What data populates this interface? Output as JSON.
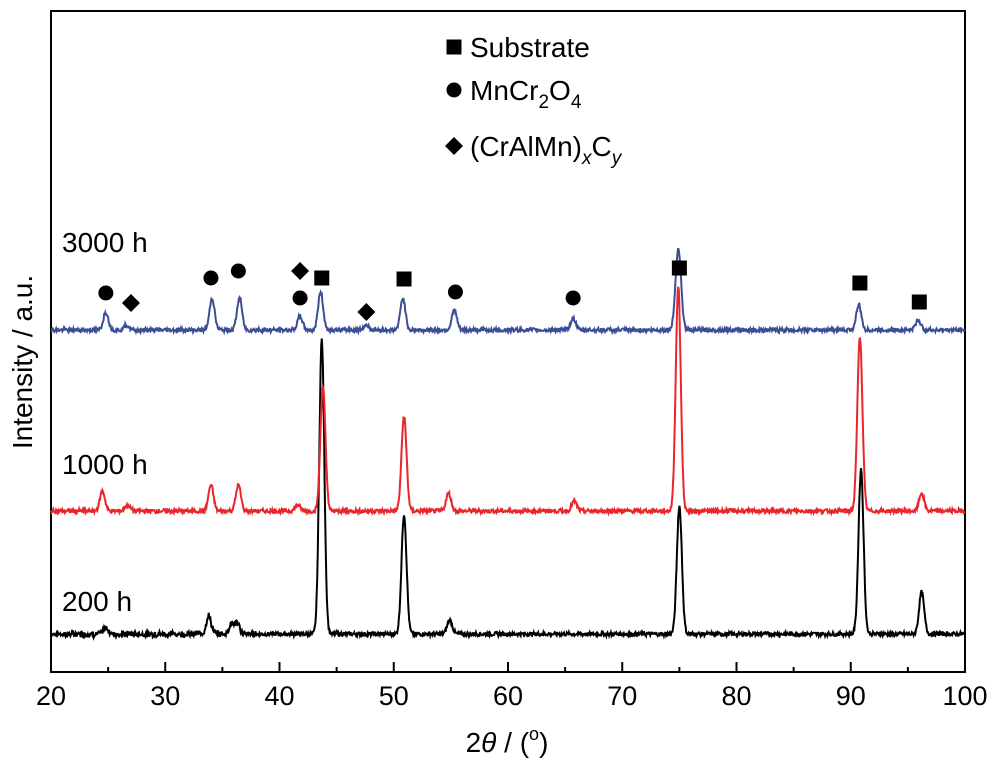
{
  "chart_data": {
    "type": "line",
    "xlabel_prefix": "2",
    "xlabel_symbol": "θ",
    "xlabel_suffix": " / (",
    "xlabel_unit": "o",
    "xlabel_close": ")",
    "ylabel": "Intensity / a.u.",
    "xlim": [
      20,
      100
    ],
    "xticks": [
      "20",
      "30",
      "40",
      "50",
      "60",
      "70",
      "80",
      "90",
      "100"
    ],
    "legend": {
      "position": "top-center",
      "entries": [
        {
          "marker": "square",
          "text": "Substrate"
        },
        {
          "marker": "circle",
          "text_parts": [
            [
              "MnCr",
              ""
            ],
            [
              "2",
              "sub"
            ],
            [
              "O",
              ""
            ],
            [
              "4",
              "sub"
            ]
          ]
        },
        {
          "marker": "diamond",
          "text_parts": [
            [
              "(CrAlMn)",
              ""
            ],
            [
              "x",
              "sub-italic"
            ],
            [
              "C",
              ""
            ],
            [
              "y",
              "sub-italic"
            ]
          ]
        }
      ]
    },
    "series": [
      {
        "name": "200 h",
        "color": "#000000",
        "baseline": 0,
        "peaks": [
          [
            24.8,
            6
          ],
          [
            33.8,
            18
          ],
          [
            35.8,
            10
          ],
          [
            36.3,
            10
          ],
          [
            43.7,
            295
          ],
          [
            50.9,
            120
          ],
          [
            54.9,
            14
          ],
          [
            75.0,
            128
          ],
          [
            90.9,
            165
          ],
          [
            96.2,
            42
          ]
        ]
      },
      {
        "name": "1000 h",
        "color": "#e8262b",
        "baseline": 0,
        "peaks": [
          [
            24.5,
            20
          ],
          [
            26.7,
            6
          ],
          [
            34.0,
            26
          ],
          [
            36.4,
            26
          ],
          [
            41.6,
            6
          ],
          [
            43.8,
            125
          ],
          [
            50.9,
            95
          ],
          [
            54.8,
            18
          ],
          [
            65.8,
            10
          ],
          [
            74.9,
            225
          ],
          [
            90.8,
            175
          ],
          [
            96.2,
            18
          ]
        ]
      },
      {
        "name": "3000 h",
        "color": "#3b4e96",
        "baseline": 0,
        "peaks": [
          [
            24.8,
            18
          ],
          [
            26.6,
            5
          ],
          [
            34.1,
            32
          ],
          [
            36.5,
            32
          ],
          [
            41.8,
            14
          ],
          [
            43.6,
            38
          ],
          [
            47.6,
            5
          ],
          [
            50.8,
            32
          ],
          [
            55.3,
            20
          ],
          [
            65.7,
            12
          ],
          [
            74.8,
            42
          ],
          [
            75.0,
            48
          ],
          [
            90.7,
            25
          ],
          [
            95.9,
            10
          ]
        ]
      }
    ],
    "phase_markers": [
      {
        "series": "3000 h",
        "x": 24.8,
        "marker": "circle"
      },
      {
        "series": "3000 h",
        "x": 27.0,
        "marker": "diamond"
      },
      {
        "series": "3000 h",
        "x": 34.0,
        "marker": "circle"
      },
      {
        "series": "3000 h",
        "x": 36.4,
        "marker": "circle"
      },
      {
        "series": "3000 h",
        "x": 41.8,
        "marker": "circle"
      },
      {
        "series": "3000 h",
        "x": 41.8,
        "marker": "diamond"
      },
      {
        "series": "3000 h",
        "x": 43.7,
        "marker": "square"
      },
      {
        "series": "3000 h",
        "x": 47.6,
        "marker": "diamond"
      },
      {
        "series": "3000 h",
        "x": 50.9,
        "marker": "square"
      },
      {
        "series": "3000 h",
        "x": 55.4,
        "marker": "circle"
      },
      {
        "series": "3000 h",
        "x": 65.7,
        "marker": "circle"
      },
      {
        "series": "3000 h",
        "x": 75.0,
        "marker": "square"
      },
      {
        "series": "3000 h",
        "x": 90.8,
        "marker": "square"
      },
      {
        "series": "3000 h",
        "x": 96.0,
        "marker": "square"
      }
    ]
  }
}
